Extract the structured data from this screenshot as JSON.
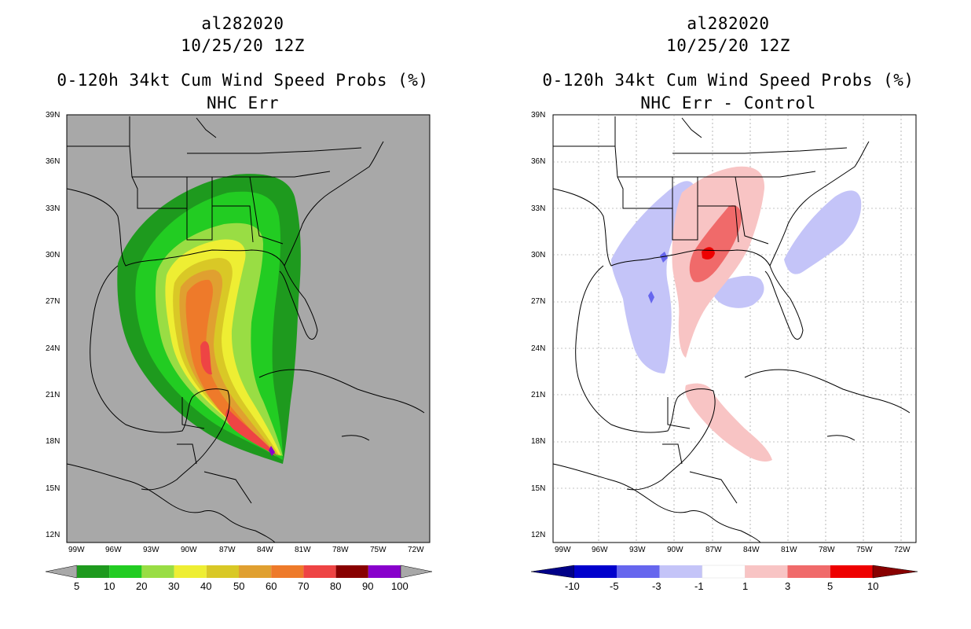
{
  "panels": [
    {
      "id": "left",
      "storm": "al282020",
      "date": "10/25/20 12Z",
      "title": "0-120h 34kt Cum Wind Speed Probs (%)",
      "subtitle": "NHC Err",
      "background": "#a8a8a8",
      "lat_labels": [
        "39N",
        "36N",
        "33N",
        "30N",
        "27N",
        "24N",
        "21N",
        "18N",
        "15N",
        "12N"
      ],
      "lon_labels": [
        "99W",
        "96W",
        "93W",
        "90W",
        "87W",
        "84W",
        "81W",
        "78W",
        "75W",
        "72W"
      ],
      "colorbar": {
        "colors": [
          "#1e9a1e",
          "#22cc22",
          "#99dd44",
          "#eeee33",
          "#d9c826",
          "#e0a030",
          "#ee7a2a",
          "#ee4444",
          "#880000",
          "#8800cc"
        ],
        "end_left_color": "#a8a8a8",
        "end_right_color": "#a8a8a8",
        "labels": [
          "5",
          "10",
          "20",
          "30",
          "40",
          "50",
          "60",
          "70",
          "80",
          "90",
          "100"
        ]
      }
    },
    {
      "id": "right",
      "storm": "al282020",
      "date": "10/25/20 12Z",
      "title": "0-120h 34kt Cum Wind Speed Probs (%)",
      "subtitle": "NHC Err - Control",
      "background": "#ffffff",
      "lat_labels": [
        "39N",
        "36N",
        "33N",
        "30N",
        "27N",
        "24N",
        "21N",
        "18N",
        "15N",
        "12N"
      ],
      "lon_labels": [
        "99W",
        "96W",
        "93W",
        "90W",
        "87W",
        "84W",
        "81W",
        "78W",
        "75W",
        "72W"
      ],
      "colorbar": {
        "colors": [
          "#0000cc",
          "#6666ee",
          "#c4c4f8",
          "#ffffff",
          "#f8c4c4",
          "#f06a6a",
          "#ee0000"
        ],
        "end_left_color": "#000088",
        "end_right_color": "#880000",
        "labels": [
          "-10",
          "-5",
          "-3",
          "-1",
          "1",
          "3",
          "5",
          "10"
        ]
      }
    }
  ]
}
